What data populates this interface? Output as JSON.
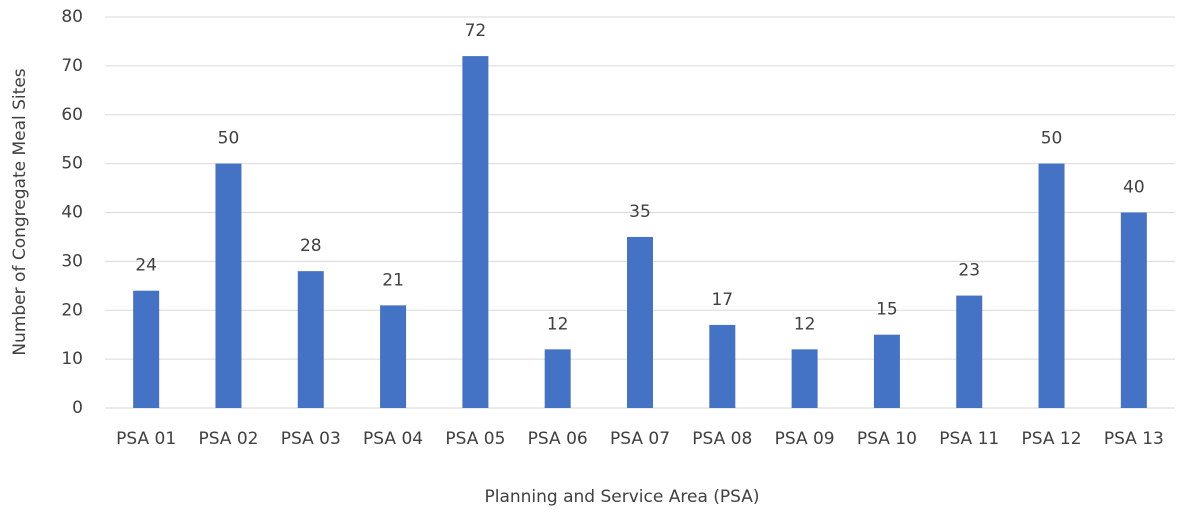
{
  "chart_data": {
    "type": "bar",
    "x_label": "Planning and Service Area (PSA)",
    "y_label": "Number of Congregate Meal Sites",
    "categories": [
      "PSA 01",
      "PSA 02",
      "PSA 03",
      "PSA 04",
      "PSA 05",
      "PSA 06",
      "PSA 07",
      "PSA 08",
      "PSA 09",
      "PSA 10",
      "PSA 11",
      "PSA 12",
      "PSA 13"
    ],
    "values": [
      24,
      50,
      28,
      21,
      72,
      12,
      35,
      17,
      12,
      15,
      23,
      50,
      40
    ],
    "color": "#4472c4",
    "ylim": [
      0,
      80
    ],
    "yticks": [
      0,
      10,
      20,
      30,
      40,
      50,
      60,
      70,
      80
    ],
    "grid": true
  }
}
